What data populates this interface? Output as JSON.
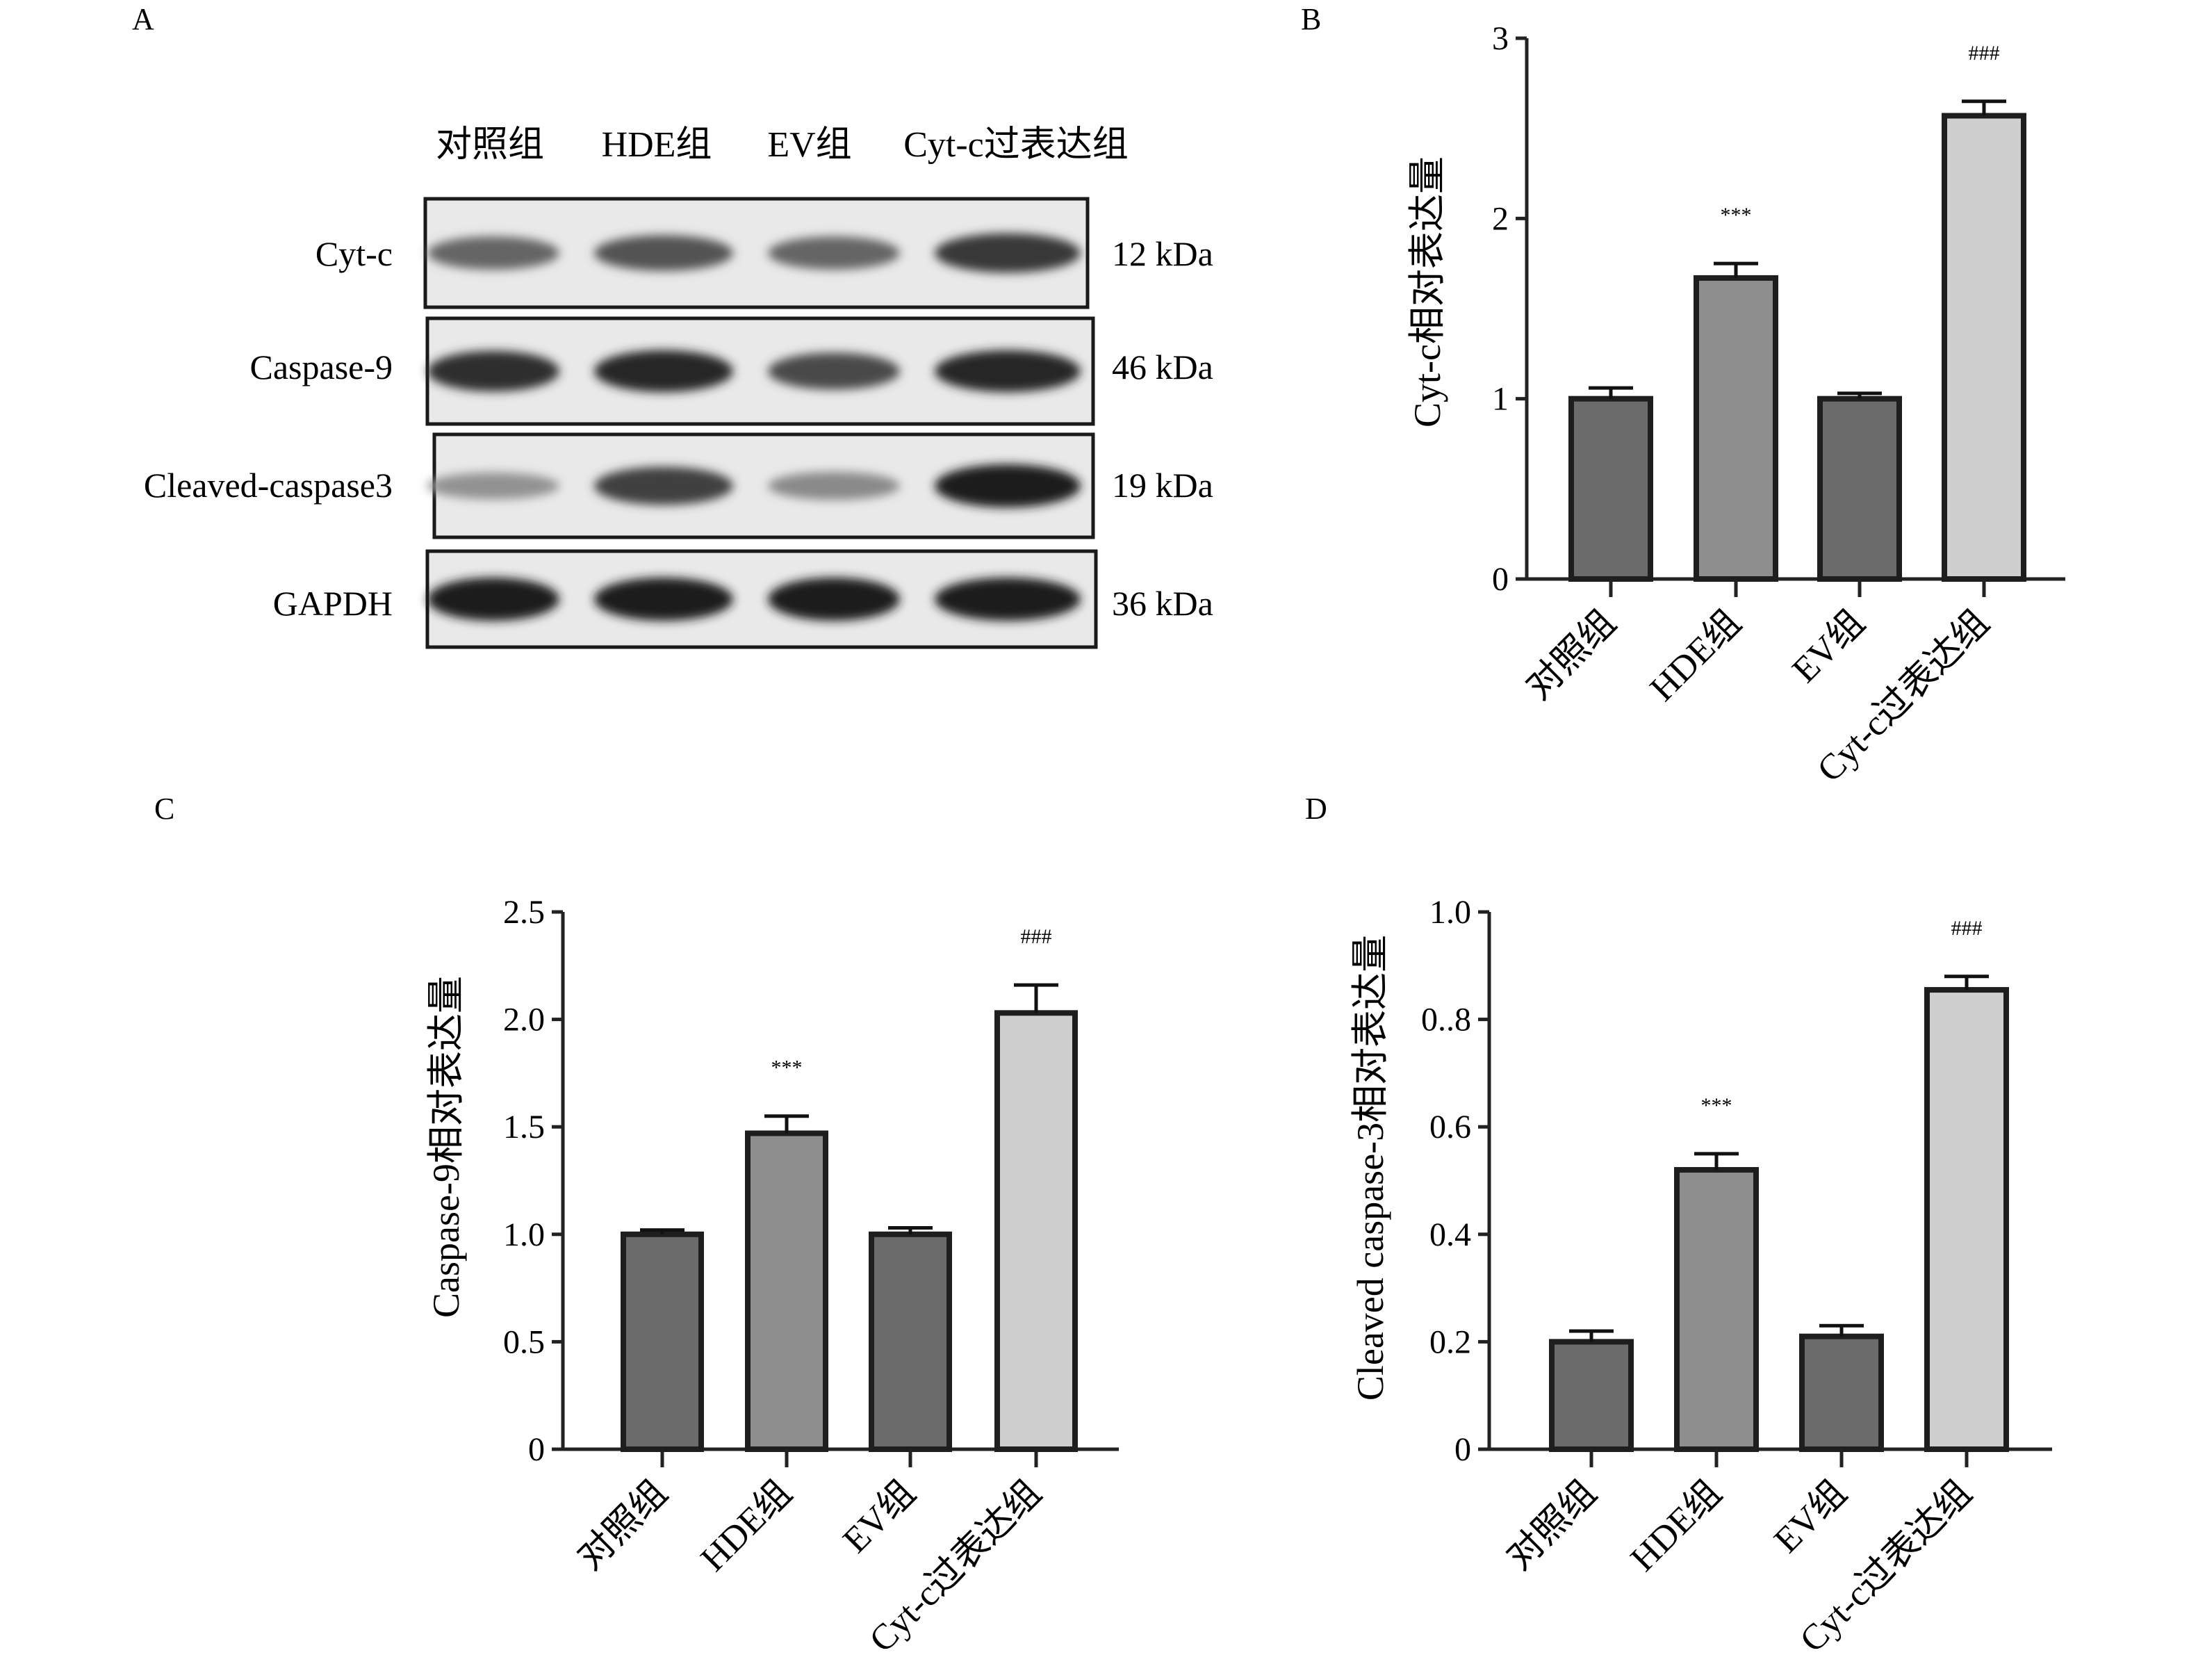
{
  "panels": {
    "A": "A",
    "B": "B",
    "C": "C",
    "D": "D"
  },
  "blot": {
    "lane_labels": [
      "对照组",
      "HDE组",
      "EV组",
      "Cyt-c过表达组"
    ],
    "rows": [
      {
        "protein": "Cyt-c",
        "mw": "12 kDa",
        "intensity": [
          0.55,
          0.65,
          0.55,
          0.8
        ]
      },
      {
        "protein": "Caspase-9",
        "mw": "46 kDa",
        "intensity": [
          0.85,
          0.9,
          0.7,
          0.9
        ]
      },
      {
        "protein": "Cleaved-caspase3",
        "mw": "19 kDa",
        "intensity": [
          0.3,
          0.75,
          0.35,
          0.95
        ]
      },
      {
        "protein": "GAPDH",
        "mw": "36 kDa",
        "intensity": [
          0.95,
          0.95,
          0.95,
          0.95
        ]
      }
    ]
  },
  "colors": {
    "bar_dark": "#6b6b6b",
    "bar_mid": "#8e8e8e",
    "bar_light": "#cfcfcf",
    "bar_edge": "#1e1e1e",
    "axis": "#222222"
  },
  "chart_data": [
    {
      "panel": "B",
      "type": "bar",
      "categories": [
        "对照组",
        "HDE组",
        "EV组",
        "Cyt-c过表达组"
      ],
      "values": [
        1.0,
        1.67,
        1.0,
        2.57
      ],
      "errors": [
        0.06,
        0.08,
        0.03,
        0.08
      ],
      "annotations": [
        "",
        "***",
        "",
        "###"
      ],
      "ylabel": "Cyt-c相对表达量",
      "ylim": [
        0,
        3
      ],
      "yticks": [
        0,
        1,
        2,
        3
      ],
      "ytick_labels": [
        "0",
        "1",
        "2",
        "3"
      ]
    },
    {
      "panel": "C",
      "type": "bar",
      "categories": [
        "对照组",
        "HDE组",
        "EV组",
        "Cyt-c过表达组"
      ],
      "values": [
        1.0,
        1.47,
        1.0,
        2.03
      ],
      "errors": [
        0.02,
        0.08,
        0.03,
        0.13
      ],
      "annotations": [
        "",
        "***",
        "",
        "###"
      ],
      "ylabel": "Caspase-9相对表达量",
      "ylim": [
        0,
        2.5
      ],
      "yticks": [
        0,
        0.5,
        1.0,
        1.5,
        2.0,
        2.5
      ],
      "ytick_labels": [
        "0",
        "0.5",
        "1.0",
        "1.5",
        "2.0",
        "2.5"
      ]
    },
    {
      "panel": "D",
      "type": "bar",
      "categories": [
        "对照组",
        "HDE组",
        "EV组",
        "Cyt-c过表达组"
      ],
      "values": [
        0.2,
        0.52,
        0.21,
        0.855
      ],
      "errors": [
        0.02,
        0.03,
        0.02,
        0.025
      ],
      "annotations": [
        "",
        "***",
        "",
        "###"
      ],
      "ylabel": "Cleaved caspase-3相对表达量",
      "ylim": [
        0,
        1.0
      ],
      "yticks": [
        0,
        0.2,
        0.4,
        0.6,
        0.8,
        1.0
      ],
      "ytick_labels": [
        "0",
        "0.2",
        "0.4",
        "0.6",
        "0..8",
        "1.0"
      ]
    }
  ]
}
